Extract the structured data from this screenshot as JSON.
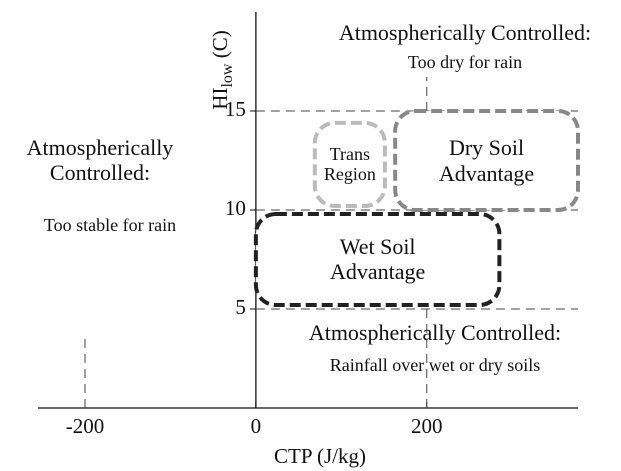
{
  "chart_data": {
    "type": "region",
    "xlabel": "CTP (J/kg)",
    "ylabel": [
      "HI",
      "low",
      " (C)"
    ],
    "xlim": [
      -255,
      377
    ],
    "ylim": [
      0,
      20
    ],
    "xticks": [
      -200,
      0,
      200
    ],
    "yticks": [
      5,
      10,
      15
    ],
    "regions": [
      {
        "label": "Wet Soil Advantage",
        "x": [
          0,
          285
        ],
        "y": [
          5.2,
          9.8
        ],
        "color": "#222222"
      },
      {
        "label": "Trans Region",
        "x": [
          69,
          151
        ],
        "y": [
          10.2,
          14.4
        ],
        "color": "#bbbbbb"
      },
      {
        "label": "Dry Soil Advantage",
        "x": [
          163,
          377
        ],
        "y": [
          10,
          15
        ],
        "color": "#888888"
      }
    ],
    "annotations": [
      {
        "title": "Atmospherically Controlled:",
        "subtitle": "Too dry for rain"
      },
      {
        "title": "Atmospherically Controlled:",
        "subtitle": "Too stable for rain"
      },
      {
        "title": "Atmospherically Controlled:",
        "subtitle": "Rainfall over wet or dry soils"
      }
    ]
  }
}
